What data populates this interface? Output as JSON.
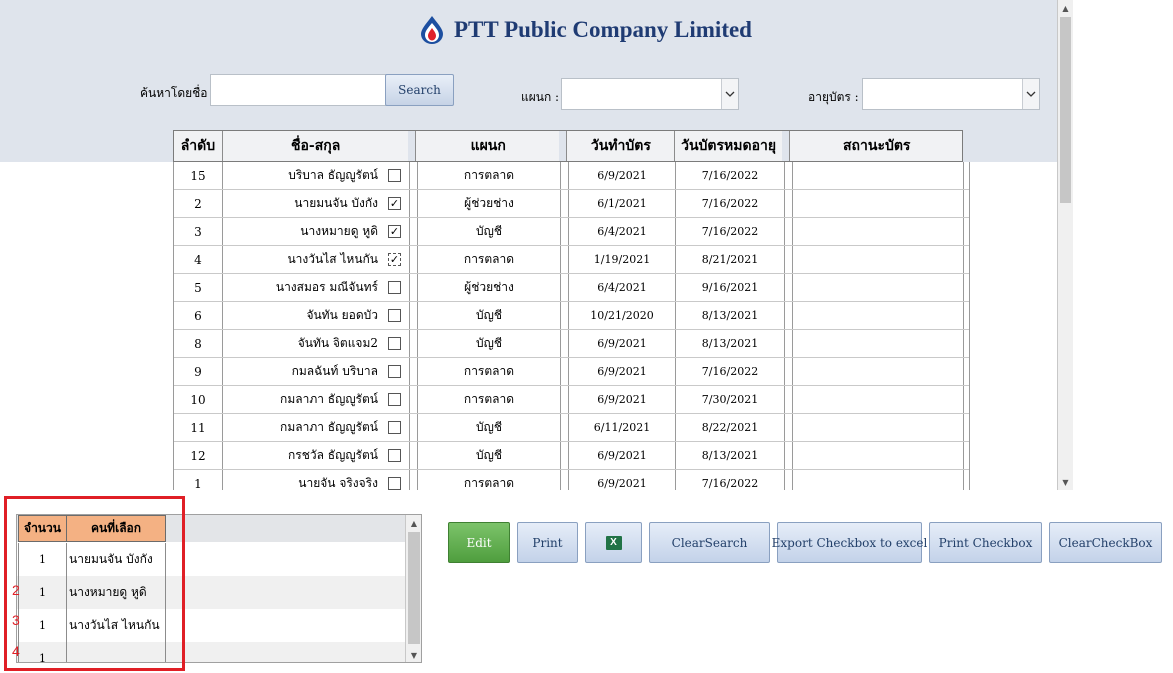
{
  "header": {
    "title": "PTT Public Company Limited",
    "search_label": "ค้นหาโดยชื่อ :",
    "search_value": "",
    "search_button": "Search",
    "department_label": "แผนก :",
    "department_value": "",
    "age_label": "อายุบัตร :",
    "age_value": "",
    "dropdown_arrow": "chevron-down-icon"
  },
  "grid": {
    "columns": [
      "ลำดับ",
      "ชื่อ-สกุล",
      "แผนก",
      "วันทำบัตร",
      "วันบัตรหมดอายุ",
      "สถานะบัตร"
    ],
    "rows": [
      {
        "no": "15",
        "name": "บริบาล ธัญญูรัตน์",
        "checked": false,
        "partial": false,
        "dept": "การตลาด",
        "issued": "6/9/2021",
        "expires": "7/16/2022",
        "status": ""
      },
      {
        "no": "2",
        "name": "นายมนจัน บังกัง",
        "checked": true,
        "partial": false,
        "dept": "ผู้ช่วยช่าง",
        "issued": "6/1/2021",
        "expires": "7/16/2022",
        "status": ""
      },
      {
        "no": "3",
        "name": "นางหมายดู หูดิ",
        "checked": true,
        "partial": false,
        "dept": "บัญชี",
        "issued": "6/4/2021",
        "expires": "7/16/2022",
        "status": ""
      },
      {
        "no": "4",
        "name": "นางวันไส ไหนกัน",
        "checked": true,
        "partial": true,
        "dept": "การตลาด",
        "issued": "1/19/2021",
        "expires": "8/21/2021",
        "status": ""
      },
      {
        "no": "5",
        "name": "นางสมอร มณีจันทร์",
        "checked": false,
        "partial": false,
        "dept": "ผู้ช่วยช่าง",
        "issued": "6/4/2021",
        "expires": "9/16/2021",
        "status": ""
      },
      {
        "no": "6",
        "name": "จันทัน ยอดบัว",
        "checked": false,
        "partial": false,
        "dept": "บัญชี",
        "issued": "10/21/2020",
        "expires": "8/13/2021",
        "status": ""
      },
      {
        "no": "8",
        "name": "จันทัน จิตแจม2",
        "checked": false,
        "partial": false,
        "dept": "บัญชี",
        "issued": "6/9/2021",
        "expires": "8/13/2021",
        "status": ""
      },
      {
        "no": "9",
        "name": "กมลฉันท์ บริบาล",
        "checked": false,
        "partial": false,
        "dept": "การตลาด",
        "issued": "6/9/2021",
        "expires": "7/16/2022",
        "status": ""
      },
      {
        "no": "10",
        "name": "กมลาภา ธัญญูรัตน์",
        "checked": false,
        "partial": false,
        "dept": "การตลาด",
        "issued": "6/9/2021",
        "expires": "7/30/2021",
        "status": ""
      },
      {
        "no": "11",
        "name": "กมลาภา ธัญญูรัตน์",
        "checked": false,
        "partial": false,
        "dept": "บัญชี",
        "issued": "6/11/2021",
        "expires": "8/22/2021",
        "status": ""
      },
      {
        "no": "12",
        "name": "กรชวัล ธัญญูรัตน์",
        "checked": false,
        "partial": false,
        "dept": "บัญชี",
        "issued": "6/9/2021",
        "expires": "8/13/2021",
        "status": ""
      },
      {
        "no": "1",
        "name": "นายจัน จริงจริง",
        "checked": false,
        "partial": false,
        "dept": "การตลาด",
        "issued": "6/9/2021",
        "expires": "7/16/2022",
        "status": ""
      }
    ]
  },
  "selected": {
    "columns": [
      "จำนวน",
      "คนที่เลือก"
    ],
    "rows": [
      {
        "count": "1",
        "name": "นายมนจัน บังกัง"
      },
      {
        "count": "1",
        "name": "นางหมายดู หูดิ"
      },
      {
        "count": "1",
        "name": "นางวันไส ไหนกัน"
      },
      {
        "count": "1",
        "name": ""
      }
    ],
    "annotations": [
      "2",
      "3",
      "4"
    ]
  },
  "buttons": {
    "edit": "Edit",
    "print": "Print",
    "excel_icon": "excel-icon",
    "clear_search": "ClearSearch",
    "export": "Export Checkbox to excel",
    "print_checkbox": "Print Checkbox",
    "clear_checkbox": "ClearCheckBox"
  },
  "colors": {
    "header_bg": "#dfe4ec",
    "title": "#1f3b73",
    "selected_header": "#f4b183",
    "annotation_red": "#e01f26",
    "edit_green": "#5aa847"
  }
}
